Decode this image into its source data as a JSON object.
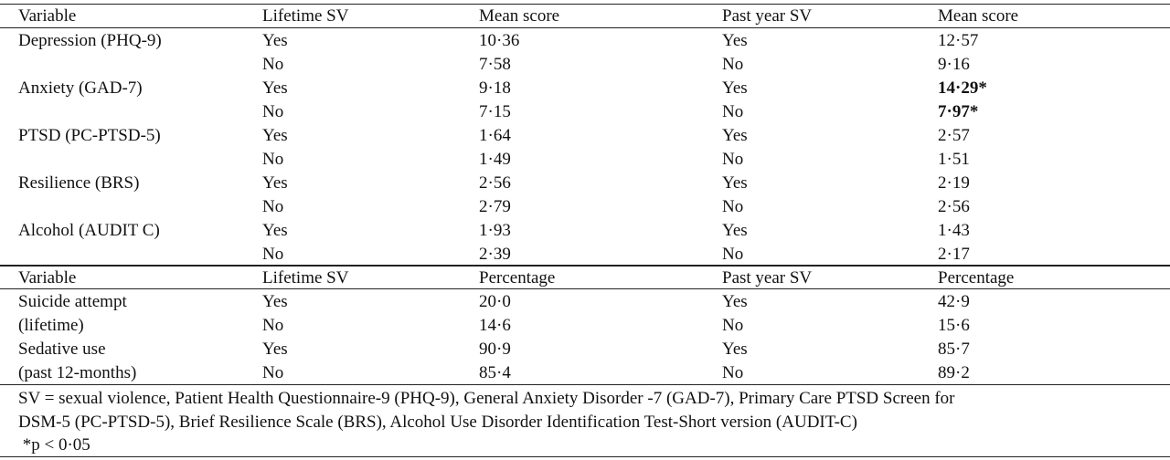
{
  "section1": {
    "header": [
      "Variable",
      "Lifetime SV",
      "Mean score",
      "Past year SV",
      "Mean score"
    ],
    "rows": [
      [
        "Depression (PHQ-9)",
        "Yes",
        "10·36",
        "Yes",
        "12·57"
      ],
      [
        "",
        "No",
        "7·58",
        "No",
        "9·16"
      ],
      [
        "Anxiety (GAD-7)",
        "Yes",
        "9·18",
        "Yes",
        "14·29*"
      ],
      [
        "",
        "No",
        "7·15",
        "No",
        "7·97*"
      ],
      [
        "PTSD (PC-PTSD-5)",
        "Yes",
        "1·64",
        "Yes",
        "2·57"
      ],
      [
        "",
        "No",
        "1·49",
        "No",
        "1·51"
      ],
      [
        "Resilience (BRS)",
        "Yes",
        "2·56",
        "Yes",
        "2·19"
      ],
      [
        "",
        "No",
        "2·79",
        "No",
        "2·56"
      ],
      [
        "Alcohol (AUDIT C)",
        "Yes",
        "1·93",
        "Yes",
        "1·43"
      ],
      [
        "",
        "No",
        "2·39",
        "No",
        "2·17"
      ]
    ]
  },
  "section2": {
    "header": [
      "Variable",
      "Lifetime SV",
      "Percentage",
      "Past year SV",
      "Percentage"
    ],
    "rows": [
      [
        "Suicide attempt",
        "Yes",
        "20·0",
        "Yes",
        "42·9"
      ],
      [
        "(lifetime)",
        "No",
        "14·6",
        "No",
        "15·6"
      ],
      [
        "Sedative use",
        "Yes",
        "90·9",
        "Yes",
        "85·7"
      ],
      [
        "(past 12-months)",
        "No",
        "85·4",
        "No",
        "89·2"
      ]
    ]
  },
  "footnote": {
    "line1": "SV = sexual violence, Patient Health Questionnaire-9 (PHQ-9), General Anxiety Disorder -7 (GAD-7), Primary Care PTSD Screen for",
    "line2": "DSM-5 (PC-PTSD-5), Brief Resilience Scale (BRS), Alcohol Use Disorder Identification Test-Short version (AUDIT-C)",
    "line3": " *p < 0·05"
  }
}
